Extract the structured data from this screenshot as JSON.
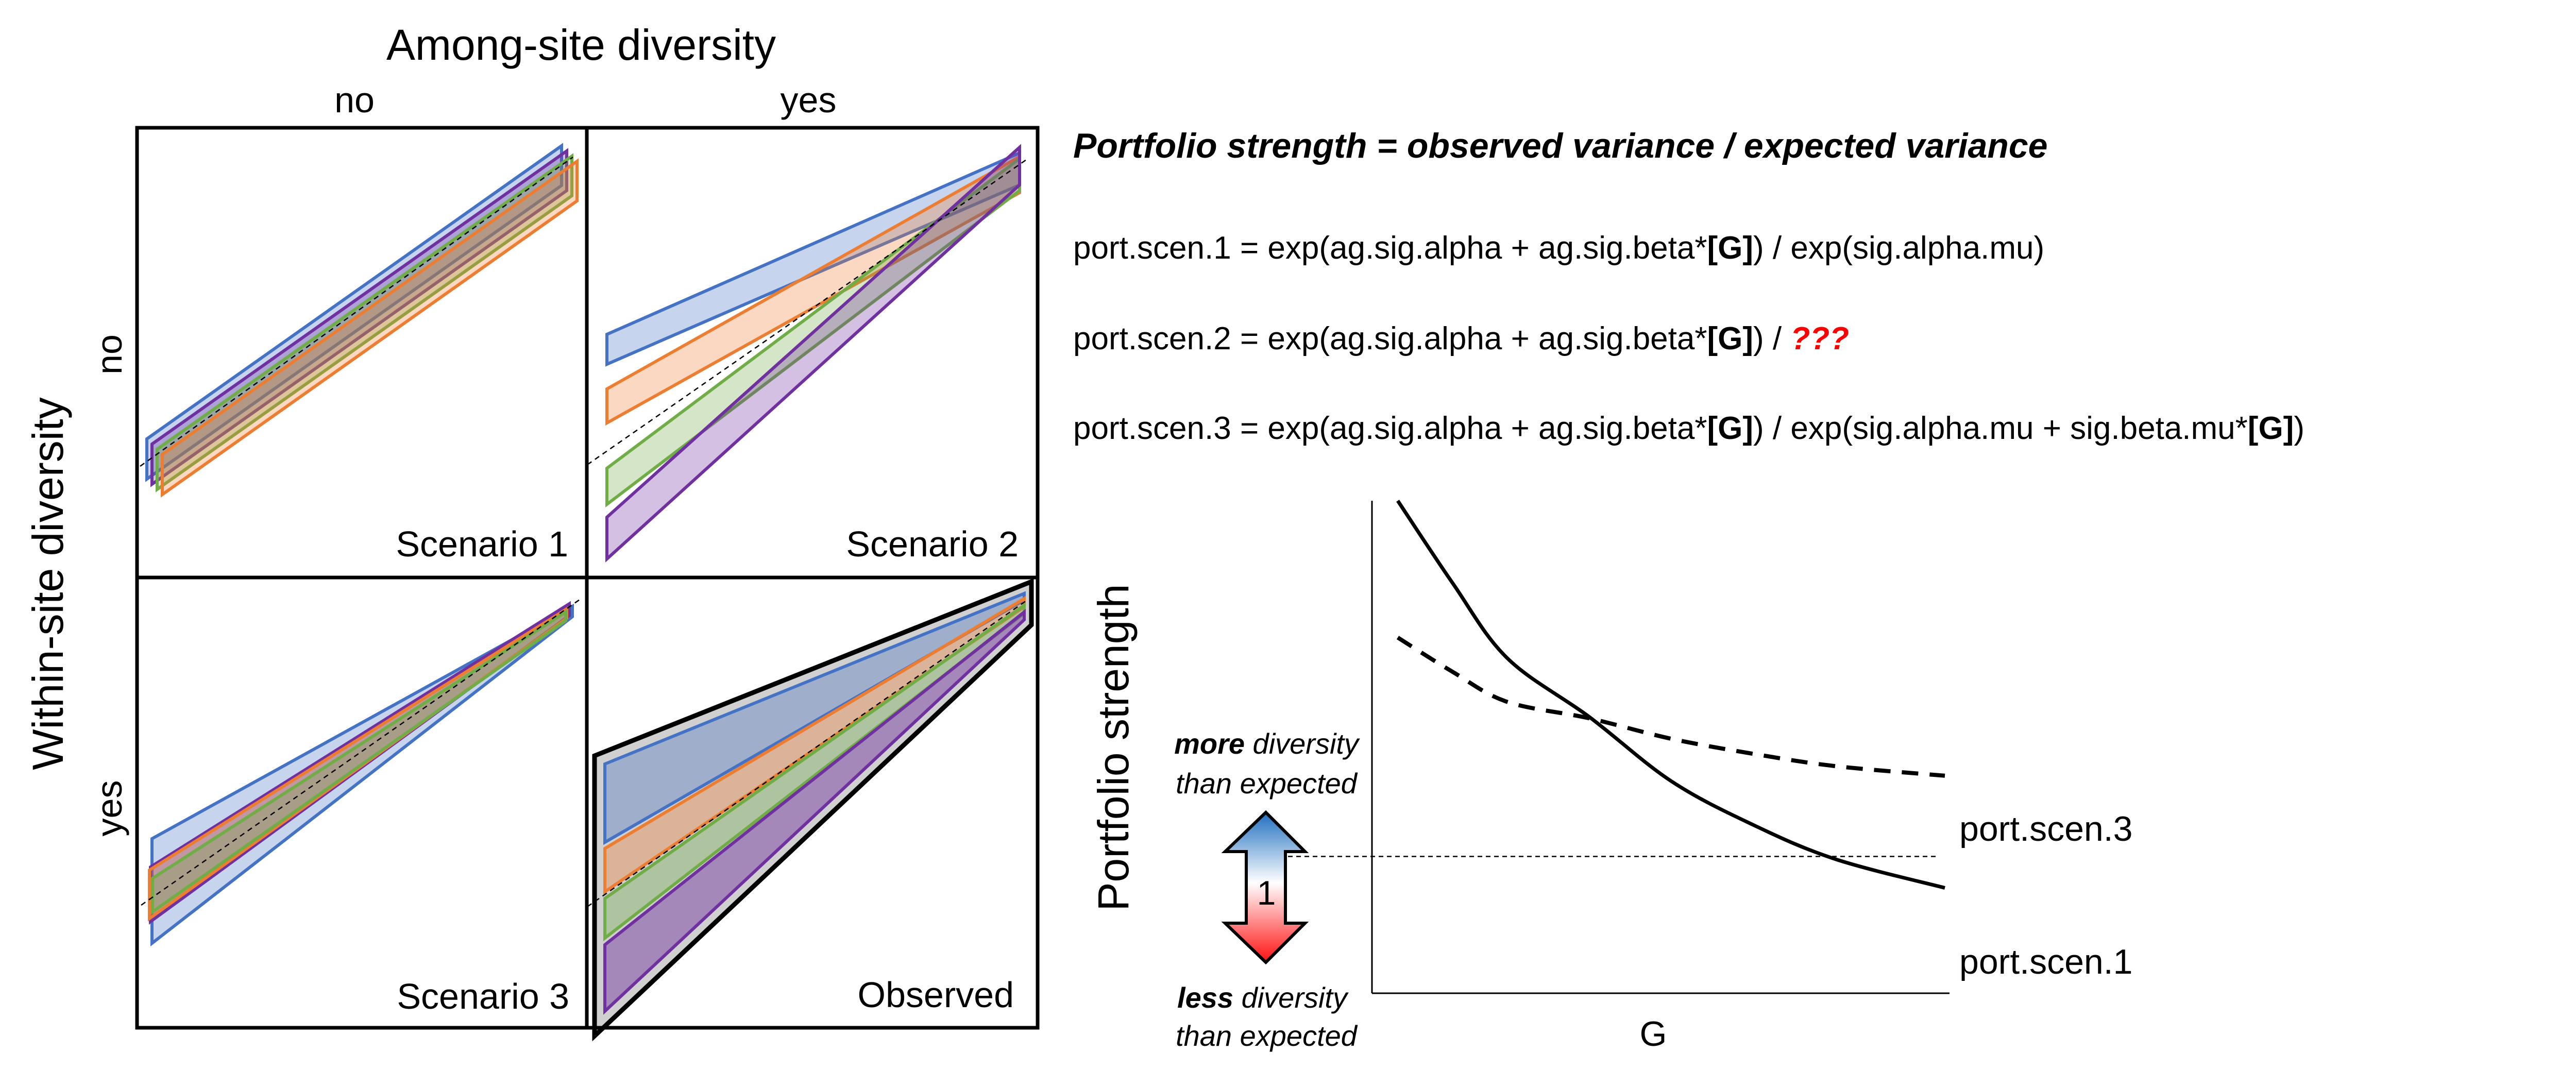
{
  "grid": {
    "column_title": "Among-site diversity",
    "row_title": "Within-site diversity",
    "columns": [
      "no",
      "yes"
    ],
    "rows": [
      "no",
      "yes"
    ],
    "panels": [
      {
        "label": "Scenario 1",
        "among_site": "no",
        "within_site": "no"
      },
      {
        "label": "Scenario 2",
        "among_site": "yes",
        "within_site": "no"
      },
      {
        "label": "Scenario 3",
        "among_site": "no",
        "within_site": "yes"
      },
      {
        "label": "Observed",
        "among_site": "yes",
        "within_site": "yes"
      }
    ],
    "series_colors": {
      "blue": "#4472C4",
      "orange": "#ED7D31",
      "green": "#70AD47",
      "purple": "#7030A0"
    }
  },
  "formulas": {
    "title": "Portfolio strength = observed variance / expected variance",
    "lines": [
      {
        "lhs": "port.scen.1 = exp(ag.sig.alpha + ag.sig.beta*",
        "bold1": "[G]",
        "mid": ") / exp(sig.alpha.mu)",
        "bold2": "",
        "tail": "",
        "red": ""
      },
      {
        "lhs": "port.scen.2 = exp(ag.sig.alpha + ag.sig.beta*",
        "bold1": "[G]",
        "mid": ") / ",
        "bold2": "",
        "tail": "",
        "red": "???"
      },
      {
        "lhs": "port.scen.3 = exp(ag.sig.alpha + ag.sig.beta*",
        "bold1": "[G]",
        "mid": ") / exp(sig.alpha.mu + sig.beta.mu*",
        "bold2": "[G]",
        "tail": ")",
        "red": ""
      }
    ],
    "highlight_color": "#FF0000"
  },
  "chart_data": {
    "type": "line",
    "title": "",
    "xlabel": "G",
    "ylabel": "Portfolio strength",
    "reference_line": {
      "y": 1,
      "label": "1",
      "style": "dotted"
    },
    "annotations": {
      "above": {
        "bold": "more",
        "rest": " diversity",
        "line2": "than expected"
      },
      "below": {
        "bold": "less",
        "rest": " diversity",
        "line2": "than expected"
      }
    },
    "x": [
      0.0,
      0.1,
      0.2,
      0.35,
      0.5,
      0.65,
      0.8,
      1.0
    ],
    "series": [
      {
        "name": "port.scen.1",
        "style": "solid",
        "values": [
          3.6,
          3.0,
          2.45,
          2.02,
          1.55,
          1.23,
          0.98,
          0.77
        ]
      },
      {
        "name": "port.scen.3",
        "style": "dashed",
        "values": [
          2.6,
          2.35,
          2.13,
          2.01,
          1.86,
          1.75,
          1.66,
          1.59
        ]
      }
    ],
    "ylim": [
      0,
      3.6
    ],
    "xlim": [
      0,
      1
    ],
    "grid": false
  }
}
